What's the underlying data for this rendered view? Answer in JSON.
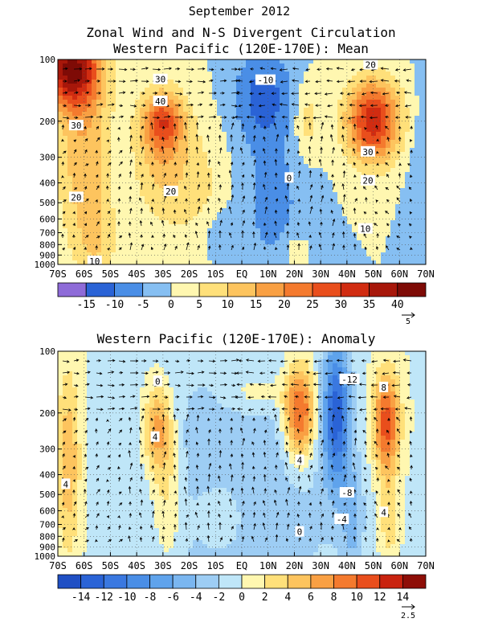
{
  "header": {
    "month": "September 2012",
    "title": "Zonal Wind and N-S Divergent Circulation"
  },
  "chart_data": [
    {
      "type": "heatmap",
      "title": "Western Pacific (120E-170E): Mean",
      "xlabel": "",
      "ylabel": "",
      "x_ticks": [
        "70S",
        "60S",
        "50S",
        "40S",
        "30S",
        "20S",
        "10S",
        "EQ",
        "10N",
        "20N",
        "30N",
        "40N",
        "50N",
        "60N",
        "70N"
      ],
      "y_ticks": [
        "100",
        "200",
        "300",
        "400",
        "500",
        "600",
        "700",
        "800",
        "900",
        "1000"
      ],
      "y_tick_values": [
        100,
        200,
        300,
        400,
        500,
        600,
        700,
        800,
        900,
        1000
      ],
      "xlim": [
        -70,
        70
      ],
      "ylim": [
        1000,
        100
      ],
      "y_scale": "log",
      "colorbar": {
        "labels": [
          "-15",
          "-10",
          "-5",
          "0",
          "5",
          "10",
          "15",
          "20",
          "25",
          "30",
          "35",
          "40"
        ],
        "label_values": [
          -15,
          -10,
          -5,
          0,
          5,
          10,
          15,
          20,
          25,
          30,
          35,
          40
        ],
        "levels": [
          -20,
          -15,
          -10,
          -5,
          0,
          5,
          10,
          15,
          20,
          25,
          30,
          35,
          40,
          45
        ],
        "colors": [
          "#8e6bd8",
          "#2a63d6",
          "#4a8ee6",
          "#86bff2",
          "#fff7b0",
          "#ffe07a",
          "#fdc45e",
          "#f9a043",
          "#f47a2e",
          "#e94e1c",
          "#d12c11",
          "#a7170a",
          "#7e0b06"
        ]
      },
      "vector_ref": "5",
      "contour_labels": [
        {
          "text": "30",
          "lat": -31,
          "p": 125
        },
        {
          "text": "-10",
          "lat": 9,
          "p": 126
        },
        {
          "text": "20",
          "lat": 49,
          "p": 106
        },
        {
          "text": "40",
          "lat": -31,
          "p": 160
        },
        {
          "text": "30",
          "lat": -63,
          "p": 210
        },
        {
          "text": "30",
          "lat": 48,
          "p": 282
        },
        {
          "text": "20",
          "lat": 48,
          "p": 390
        },
        {
          "text": "0",
          "lat": 18,
          "p": 378
        },
        {
          "text": "20",
          "lat": -27,
          "p": 440
        },
        {
          "text": "20",
          "lat": -63,
          "p": 470
        },
        {
          "text": "10",
          "lat": 47,
          "p": 670
        },
        {
          "text": "10",
          "lat": -56,
          "p": 965
        }
      ],
      "features": [
        {
          "amp": 40,
          "lat": -65,
          "p": 110,
          "sx": 11,
          "sy": 0.45
        },
        {
          "amp": 14,
          "lat": -60,
          "p": 300,
          "sx": 10,
          "sy": 1.0
        },
        {
          "amp": 7,
          "lat": -55,
          "p": 800,
          "sx": 8,
          "sy": 0.45
        },
        {
          "amp": 22,
          "lat": -30,
          "p": 200,
          "sx": 7.5,
          "sy": 0.32
        },
        {
          "amp": 12,
          "lat": -30,
          "p": 300,
          "sx": 11,
          "sy": 0.7
        },
        {
          "amp": 6,
          "lat": -15,
          "p": 500,
          "sx": 10,
          "sy": 0.8
        },
        {
          "amp": -6,
          "lat": -10,
          "p": 720,
          "sx": 8,
          "sy": 0.35
        },
        {
          "amp": -12,
          "lat": 8,
          "p": 150,
          "sx": 11,
          "sy": 0.5
        },
        {
          "amp": -7,
          "lat": 12,
          "p": 500,
          "sx": 12,
          "sy": 0.9
        },
        {
          "amp": 5,
          "lat": 20,
          "p": 850,
          "sx": 5,
          "sy": 0.2
        },
        {
          "amp": 8,
          "lat": 25,
          "p": 200,
          "sx": 5,
          "sy": 0.4
        },
        {
          "amp": 34,
          "lat": 50,
          "p": 200,
          "sx": 10,
          "sy": 0.45
        },
        {
          "amp": -4,
          "lat": 68,
          "p": 400,
          "sx": 5,
          "sy": 1.0
        }
      ]
    },
    {
      "type": "heatmap",
      "title": "Western Pacific (120E-170E): Anomaly",
      "xlabel": "",
      "ylabel": "",
      "x_ticks": [
        "70S",
        "60S",
        "50S",
        "40S",
        "30S",
        "20S",
        "10S",
        "EQ",
        "10N",
        "20N",
        "30N",
        "40N",
        "50N",
        "60N",
        "70N"
      ],
      "y_ticks": [
        "100",
        "200",
        "300",
        "400",
        "500",
        "600",
        "700",
        "800",
        "900",
        "1000"
      ],
      "y_tick_values": [
        100,
        200,
        300,
        400,
        500,
        600,
        700,
        800,
        900,
        1000
      ],
      "xlim": [
        -70,
        70
      ],
      "ylim": [
        1000,
        100
      ],
      "y_scale": "log",
      "colorbar": {
        "labels": [
          "-14",
          "-12",
          "-10",
          "-8",
          "-6",
          "-4",
          "-2",
          "0",
          "2",
          "4",
          "6",
          "8",
          "10",
          "12",
          "14"
        ],
        "label_values": [
          -14,
          -12,
          -10,
          -8,
          -6,
          -4,
          -2,
          0,
          2,
          4,
          6,
          8,
          10,
          12,
          14
        ],
        "levels": [
          -16,
          -14,
          -12,
          -10,
          -8,
          -6,
          -4,
          -2,
          0,
          2,
          4,
          6,
          8,
          10,
          12,
          14,
          16
        ],
        "colors": [
          "#1f4fc4",
          "#2a63d6",
          "#3a78e0",
          "#4a8ee6",
          "#5fa3ec",
          "#7ab6f0",
          "#9dcdf4",
          "#bfe6f8",
          "#fff7b0",
          "#ffe07a",
          "#fdc45e",
          "#f9a043",
          "#f47a2e",
          "#e94e1c",
          "#c9230f",
          "#8e0e07"
        ]
      },
      "vector_ref": "2.5",
      "contour_labels": [
        {
          "text": "0",
          "lat": -32,
          "p": 140
        },
        {
          "text": "-12",
          "lat": 41,
          "p": 137
        },
        {
          "text": "8",
          "lat": 54,
          "p": 150
        },
        {
          "text": "4",
          "lat": -33,
          "p": 262
        },
        {
          "text": "4",
          "lat": -67,
          "p": 445
        },
        {
          "text": "4",
          "lat": 22,
          "p": 340
        },
        {
          "text": "-8",
          "lat": 40,
          "p": 490
        },
        {
          "text": "-4",
          "lat": 38,
          "p": 660
        },
        {
          "text": "4",
          "lat": 54,
          "p": 610
        },
        {
          "text": "0",
          "lat": 22,
          "p": 760
        }
      ],
      "features": [
        {
          "amp": -4,
          "lat": 0,
          "p": 450,
          "sx": 40,
          "sy": 1.6
        },
        {
          "amp": 6,
          "lat": -66,
          "p": 350,
          "sx": 4.5,
          "sy": 1.0
        },
        {
          "amp": 8,
          "lat": -32,
          "p": 240,
          "sx": 5.5,
          "sy": 0.5
        },
        {
          "amp": 4,
          "lat": -28,
          "p": 520,
          "sx": 6,
          "sy": 0.7
        },
        {
          "amp": 3,
          "lat": -8,
          "p": 620,
          "sx": 10,
          "sy": 0.4
        },
        {
          "amp": 3,
          "lat": 5,
          "p": 160,
          "sx": 12,
          "sy": 0.25
        },
        {
          "amp": 12,
          "lat": 22,
          "p": 200,
          "sx": 6,
          "sy": 0.55
        },
        {
          "amp": -12,
          "lat": 36,
          "p": 200,
          "sx": 5,
          "sy": 0.8
        },
        {
          "amp": -4,
          "lat": 42,
          "p": 650,
          "sx": 4,
          "sy": 0.6
        },
        {
          "amp": 12,
          "lat": 55,
          "p": 225,
          "sx": 5,
          "sy": 0.55
        },
        {
          "amp": 4,
          "lat": 56,
          "p": 650,
          "sx": 3.5,
          "sy": 0.5
        }
      ]
    }
  ]
}
